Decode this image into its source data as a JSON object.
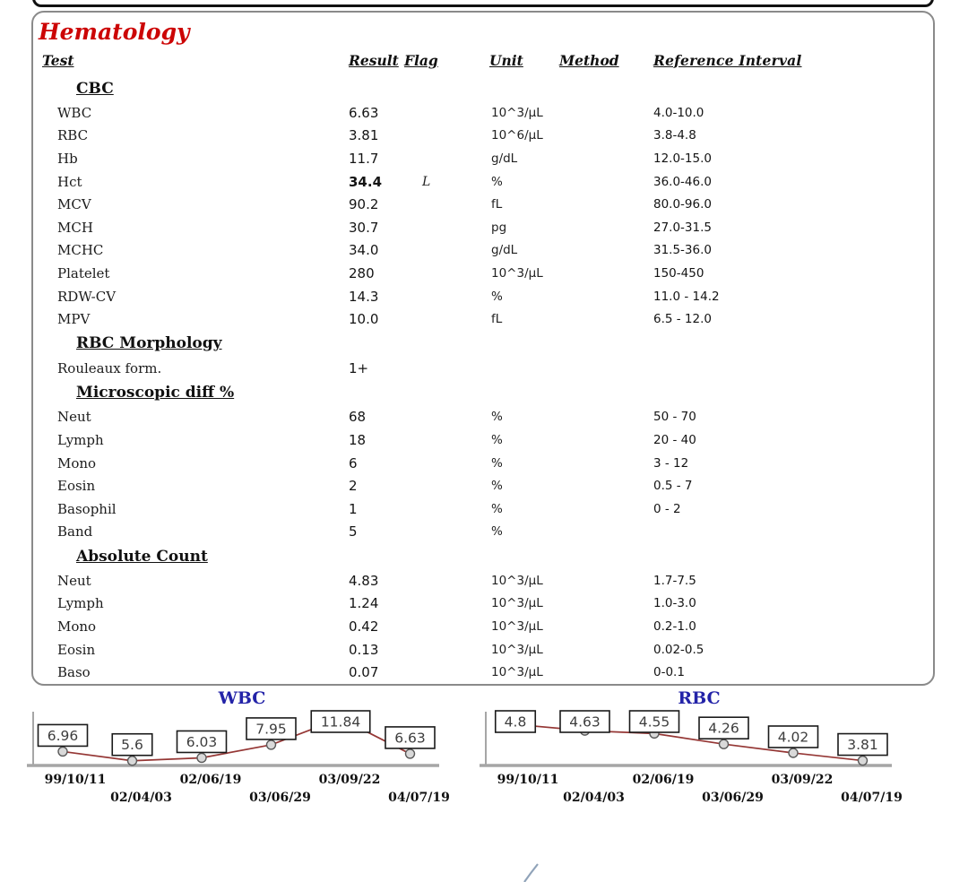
{
  "report": {
    "title": "Hematology"
  },
  "table": {
    "columns": {
      "test": "Test",
      "result": "Result",
      "flag": "Flag",
      "unit": "Unit",
      "method": "Method",
      "ref": "Reference Interval"
    },
    "sections": [
      {
        "heading": "CBC",
        "rows": [
          {
            "test": "WBC",
            "result": "6.63",
            "flag": "",
            "unit": "10^3/µL",
            "method": "",
            "ref": "4.0-10.0"
          },
          {
            "test": "RBC",
            "result": "3.81",
            "flag": "",
            "unit": "10^6/µL",
            "method": "",
            "ref": "3.8-4.8"
          },
          {
            "test": "Hb",
            "result": "11.7",
            "flag": "",
            "unit": "g/dL",
            "method": "",
            "ref": "12.0-15.0"
          },
          {
            "test": "Hct",
            "result": "34.4",
            "flag": "L",
            "unit": "%",
            "method": "",
            "ref": "36.0-46.0"
          },
          {
            "test": "MCV",
            "result": "90.2",
            "flag": "",
            "unit": "fL",
            "method": "",
            "ref": "80.0-96.0"
          },
          {
            "test": "MCH",
            "result": "30.7",
            "flag": "",
            "unit": "pg",
            "method": "",
            "ref": "27.0-31.5"
          },
          {
            "test": "MCHC",
            "result": "34.0",
            "flag": "",
            "unit": "g/dL",
            "method": "",
            "ref": "31.5-36.0"
          },
          {
            "test": "Platelet",
            "result": "280",
            "flag": "",
            "unit": "10^3/µL",
            "method": "",
            "ref": "150-450"
          },
          {
            "test": "RDW-CV",
            "result": "14.3",
            "flag": "",
            "unit": "%",
            "method": "",
            "ref": "11.0 - 14.2"
          },
          {
            "test": "MPV",
            "result": "10.0",
            "flag": "",
            "unit": "fL",
            "method": "",
            "ref": "6.5 - 12.0"
          }
        ]
      },
      {
        "heading": "RBC Morphology",
        "rows": [
          {
            "test": "Rouleaux form.",
            "result": "1+",
            "flag": "",
            "unit": "",
            "method": "",
            "ref": ""
          }
        ]
      },
      {
        "heading": "Microscopic diff %",
        "rows": [
          {
            "test": "Neut",
            "result": "68",
            "flag": "",
            "unit": "%",
            "method": "",
            "ref": "50 - 70"
          },
          {
            "test": "Lymph",
            "result": "18",
            "flag": "",
            "unit": "%",
            "method": "",
            "ref": "20 - 40"
          },
          {
            "test": "Mono",
            "result": "6",
            "flag": "",
            "unit": "%",
            "method": "",
            "ref": "3 - 12"
          },
          {
            "test": "Eosin",
            "result": "2",
            "flag": "",
            "unit": "%",
            "method": "",
            "ref": "0.5 - 7"
          },
          {
            "test": "Basophil",
            "result": "1",
            "flag": "",
            "unit": "%",
            "method": "",
            "ref": "0 - 2"
          },
          {
            "test": "Band",
            "result": "5",
            "flag": "",
            "unit": "%",
            "method": "",
            "ref": ""
          }
        ]
      },
      {
        "heading": "Absolute Count",
        "rows": [
          {
            "test": "Neut",
            "result": "4.83",
            "flag": "",
            "unit": "10^3/µL",
            "method": "",
            "ref": "1.7-7.5"
          },
          {
            "test": "Lymph",
            "result": "1.24",
            "flag": "",
            "unit": "10^3/µL",
            "method": "",
            "ref": "1.0-3.0"
          },
          {
            "test": "Mono",
            "result": "0.42",
            "flag": "",
            "unit": "10^3/µL",
            "method": "",
            "ref": "0.2-1.0"
          },
          {
            "test": "Eosin",
            "result": "0.13",
            "flag": "",
            "unit": "10^3/µL",
            "method": "",
            "ref": "0.02-0.5"
          },
          {
            "test": "Baso",
            "result": "0.07",
            "flag": "",
            "unit": "10^3/µL",
            "method": "",
            "ref": "0-0.1"
          }
        ]
      }
    ]
  },
  "chart_data": [
    {
      "type": "line",
      "title": "WBC",
      "x": [
        "99/10/11",
        "02/04/03",
        "02/06/19",
        "03/06/29",
        "03/09/22",
        "04/07/19"
      ],
      "values": [
        6.96,
        5.6,
        6.03,
        7.95,
        11.84,
        6.63
      ],
      "labels": [
        "6.96",
        "5.6",
        "6.03",
        "7.95",
        "11.84",
        "6.63"
      ],
      "ylim": [
        5.3,
        12.3
      ],
      "grid": false,
      "legend": "none"
    },
    {
      "type": "line",
      "title": "RBC",
      "x": [
        "99/10/11",
        "02/04/03",
        "02/06/19",
        "03/06/29",
        "03/09/22",
        "04/07/19"
      ],
      "values": [
        4.8,
        4.63,
        4.55,
        4.26,
        4.02,
        3.81
      ],
      "labels": [
        "4.8",
        "4.63",
        "4.55",
        "4.26",
        "4.02",
        "3.81"
      ],
      "ylim": [
        3.75,
        5.05
      ],
      "grid": false,
      "legend": "none"
    }
  ],
  "colors": {
    "title_red": "#cc0505",
    "chart_title_blue": "#2323a8",
    "line_dark_red": "#953735",
    "marker_fill": "#d9d9d9",
    "marker_stroke": "#595959",
    "axis_gray": "#a6a6a6",
    "box_border": "#8a8a8a"
  }
}
